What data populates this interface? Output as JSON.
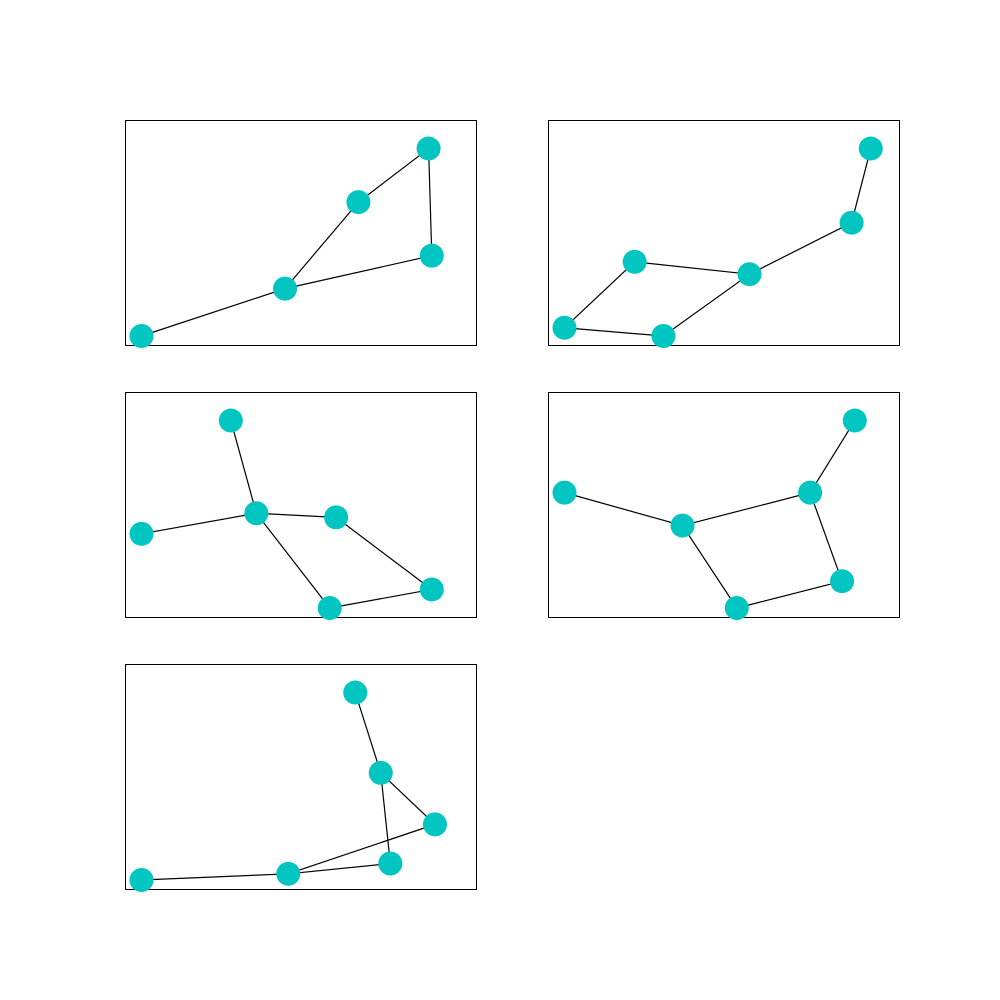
{
  "node_color": "#00c5c1",
  "edge_color": "#000000",
  "graphs": [
    {
      "nodes": [
        [
          0.0,
          0.0
        ],
        [
          0.45,
          0.23
        ],
        [
          0.91,
          0.39
        ],
        [
          0.68,
          0.65
        ],
        [
          0.9,
          0.91
        ]
      ],
      "edges": [
        [
          0,
          1
        ],
        [
          1,
          2
        ],
        [
          1,
          3
        ],
        [
          3,
          4
        ],
        [
          2,
          4
        ]
      ]
    },
    {
      "nodes": [
        [
          0.0,
          0.04
        ],
        [
          0.31,
          0.0
        ],
        [
          0.22,
          0.36
        ],
        [
          0.58,
          0.3
        ],
        [
          0.9,
          0.55
        ],
        [
          0.96,
          0.91
        ]
      ],
      "edges": [
        [
          0,
          1
        ],
        [
          0,
          2
        ],
        [
          1,
          3
        ],
        [
          2,
          3
        ],
        [
          3,
          4
        ],
        [
          4,
          5
        ]
      ]
    },
    {
      "nodes": [
        [
          0.0,
          0.36
        ],
        [
          0.28,
          0.91
        ],
        [
          0.36,
          0.46
        ],
        [
          0.61,
          0.44
        ],
        [
          0.59,
          0.0
        ],
        [
          0.91,
          0.09
        ]
      ],
      "edges": [
        [
          0,
          2
        ],
        [
          1,
          2
        ],
        [
          2,
          3
        ],
        [
          2,
          4
        ],
        [
          3,
          5
        ],
        [
          4,
          5
        ]
      ]
    },
    {
      "nodes": [
        [
          0.0,
          0.56
        ],
        [
          0.37,
          0.4
        ],
        [
          0.54,
          0.0
        ],
        [
          0.77,
          0.56
        ],
        [
          0.87,
          0.13
        ],
        [
          0.91,
          0.91
        ]
      ],
      "edges": [
        [
          0,
          1
        ],
        [
          1,
          2
        ],
        [
          1,
          3
        ],
        [
          2,
          4
        ],
        [
          3,
          4
        ],
        [
          3,
          5
        ]
      ]
    },
    {
      "nodes": [
        [
          0.0,
          0.0
        ],
        [
          0.46,
          0.03
        ],
        [
          0.78,
          0.08
        ],
        [
          0.92,
          0.27
        ],
        [
          0.75,
          0.52
        ],
        [
          0.67,
          0.91
        ]
      ],
      "edges": [
        [
          0,
          1
        ],
        [
          1,
          2
        ],
        [
          1,
          3
        ],
        [
          2,
          4
        ],
        [
          3,
          4
        ],
        [
          4,
          5
        ]
      ]
    }
  ]
}
